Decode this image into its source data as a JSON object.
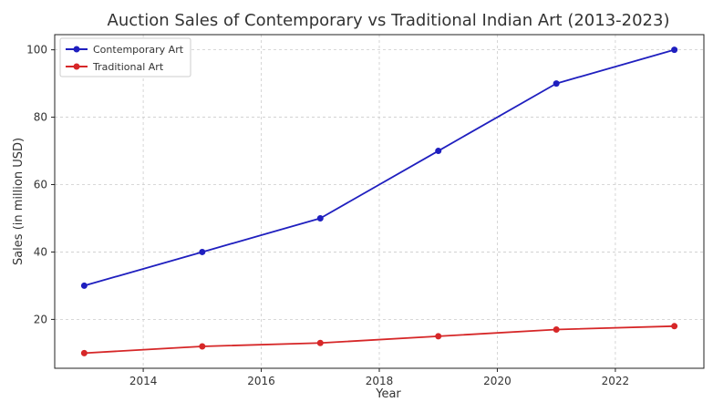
{
  "chart_data": {
    "type": "line",
    "title": "Auction Sales of Contemporary vs Traditional Indian Art (2013-2023)",
    "xlabel": "Year",
    "ylabel": "Sales (in million USD)",
    "x": [
      2013,
      2015,
      2017,
      2019,
      2021,
      2023
    ],
    "xlim": [
      2012.5,
      2023.5
    ],
    "ylim": [
      5.5,
      104.5
    ],
    "xticks": [
      2014,
      2016,
      2018,
      2020,
      2022
    ],
    "yticks": [
      20,
      40,
      60,
      80,
      100
    ],
    "grid": true,
    "legend_position": "top-left",
    "series": [
      {
        "name": "Contemporary Art",
        "color": "#1f1fbf",
        "values": [
          30,
          40,
          50,
          70,
          90,
          100
        ]
      },
      {
        "name": "Traditional Art",
        "color": "#d62728",
        "values": [
          10,
          12,
          13,
          15,
          17,
          18
        ]
      }
    ]
  }
}
